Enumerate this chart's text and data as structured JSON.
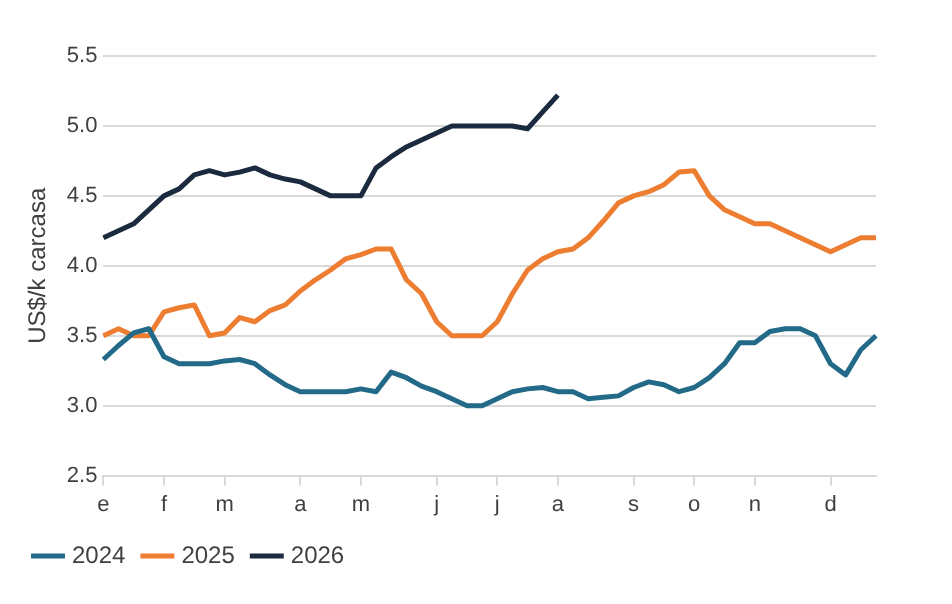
{
  "chart_data": {
    "type": "line",
    "ylabel": "US$/k carcasa",
    "categories": [
      "e",
      null,
      null,
      null,
      "f",
      null,
      null,
      null,
      "m",
      null,
      null,
      null,
      null,
      "a",
      null,
      null,
      null,
      "m",
      null,
      null,
      null,
      null,
      "j",
      null,
      null,
      null,
      "j",
      null,
      null,
      null,
      "a",
      null,
      null,
      null,
      null,
      "s",
      null,
      null,
      null,
      "o",
      null,
      null,
      null,
      "n",
      null,
      null,
      null,
      null,
      "d",
      null,
      null,
      null
    ],
    "ylim": [
      2.5,
      5.5
    ],
    "yticks": [
      {
        "value": 2.5,
        "label": "2.5"
      },
      {
        "value": 3,
        "label": "3.0"
      },
      {
        "value": 3.5,
        "label": "3.5"
      },
      {
        "value": 4,
        "label": "4.0"
      },
      {
        "value": 4.5,
        "label": "4.5"
      },
      {
        "value": 5,
        "label": "5.0"
      },
      {
        "value": 5.5,
        "label": "5.5"
      }
    ],
    "grid": "y",
    "legend": "bottom",
    "marker": "none",
    "line_style": "solid",
    "series": [
      {
        "name": "2024",
        "color": "#226a87",
        "values": [
          3.33,
          3.43,
          3.52,
          3.55,
          3.35,
          3.3,
          3.3,
          3.3,
          3.32,
          3.33,
          3.3,
          3.22,
          3.15,
          3.1,
          3.1,
          3.1,
          3.1,
          3.12,
          3.1,
          3.24,
          3.2,
          3.14,
          3.1,
          3.05,
          3.0,
          3.0,
          3.05,
          3.1,
          3.12,
          3.13,
          3.1,
          3.1,
          3.05,
          3.06,
          3.07,
          3.13,
          3.17,
          3.15,
          3.1,
          3.13,
          3.2,
          3.3,
          3.45,
          3.45,
          3.53,
          3.55,
          3.55,
          3.5,
          3.3,
          3.22,
          3.4,
          3.5
        ]
      },
      {
        "name": "2025",
        "color": "#ed7d31",
        "values": [
          3.5,
          3.55,
          3.5,
          3.5,
          3.67,
          3.7,
          3.72,
          3.5,
          3.52,
          3.63,
          3.6,
          3.68,
          3.72,
          3.82,
          3.9,
          3.97,
          4.05,
          4.08,
          4.12,
          4.12,
          3.9,
          3.8,
          3.6,
          3.5,
          3.5,
          3.5,
          3.6,
          3.8,
          3.97,
          4.05,
          4.1,
          4.12,
          4.2,
          4.32,
          4.45,
          4.5,
          4.53,
          4.58,
          4.67,
          4.68,
          4.5,
          4.4,
          4.35,
          4.3,
          4.3,
          4.25,
          4.2,
          4.15,
          4.1,
          4.15,
          4.2,
          4.2
        ]
      },
      {
        "name": "2026",
        "color": "#1b2a3f",
        "values": [
          4.2,
          4.25,
          4.3,
          4.4,
          4.5,
          4.55,
          4.65,
          4.68,
          4.65,
          4.67,
          4.7,
          4.65,
          4.62,
          4.6,
          4.55,
          4.5,
          4.5,
          4.5,
          4.7,
          4.78,
          4.85,
          4.9,
          4.95,
          5.0,
          5.0,
          5.0,
          5.0,
          5.0,
          4.98,
          5.1,
          5.22,
          null,
          null,
          null,
          null,
          null,
          null,
          null,
          null,
          null,
          null,
          null,
          null,
          null,
          null,
          null,
          null,
          null,
          null,
          null,
          null,
          null
        ]
      }
    ]
  }
}
